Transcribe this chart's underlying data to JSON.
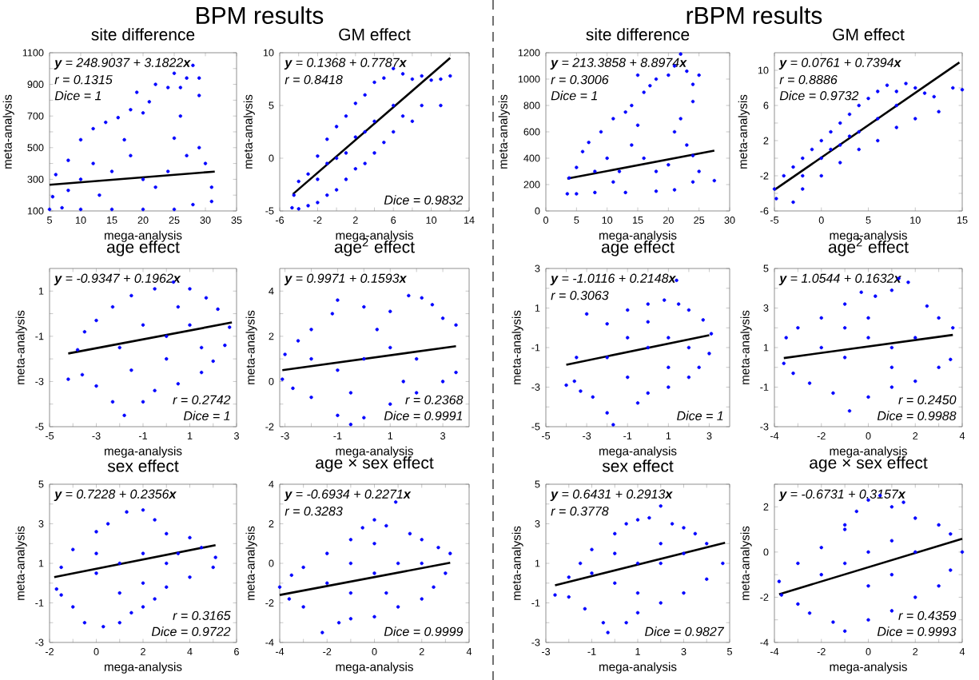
{
  "chart_data": [
    {
      "type": "other",
      "title": "BPM results"
    },
    {
      "type": "scatter",
      "title": "site difference",
      "xlabel": "mega-analysis",
      "ylabel": "meta-analysis",
      "marker": "circle",
      "xlim": [
        5,
        35
      ],
      "xticks": [
        5,
        10,
        15,
        20,
        25,
        30,
        35
      ],
      "ylim": [
        100,
        1100
      ],
      "yticks": [
        100,
        {
          "value": 200,
          "label": null
        },
        300,
        {
          "value": 400,
          "label": null
        },
        500,
        {
          "value": 600,
          "label": null
        },
        700,
        {
          "value": 800,
          "label": null
        },
        900,
        {
          "value": 1000,
          "label": null
        },
        1100
      ],
      "series": [
        {
          "type": "scatter",
          "color": "#0000ff",
          "x": [
            5,
            5.5,
            6,
            8,
            10,
            12,
            14,
            16,
            18,
            19,
            20,
            21,
            22,
            24,
            25,
            26,
            27,
            28,
            29,
            29,
            26,
            25,
            27,
            29,
            30,
            31,
            31,
            28,
            25,
            20,
            15,
            10,
            7,
            10,
            12,
            15,
            18,
            20,
            22,
            17,
            13,
            24,
            8
          ],
          "values": [
            110,
            190,
            330,
            420,
            550,
            620,
            660,
            690,
            740,
            850,
            720,
            790,
            900,
            880,
            970,
            880,
            940,
            1020,
            940,
            830,
            700,
            560,
            450,
            500,
            400,
            250,
            160,
            140,
            110,
            110,
            110,
            110,
            120,
            300,
            400,
            350,
            450,
            300,
            250,
            550,
            200,
            350,
            230
          ]
        },
        {
          "type": "line",
          "color": "#000000",
          "marker": "none",
          "x": [
            5,
            31.5
          ],
          "values": [
            265,
            349
          ]
        }
      ],
      "annotations": [
        "**y** = 248.9037 + 3.1822**x**",
        "r = 0.1315",
        "Dice = 1"
      ]
    },
    {
      "type": "scatter",
      "title": "GM effect",
      "xlabel": "mega-analysis",
      "ylabel": "meta-analysis",
      "marker": "circle",
      "xlim": [
        -6,
        14
      ],
      "xticks": [
        -6,
        {
          "value": -4,
          "label": null
        },
        -2,
        {
          "value": 0,
          "label": null
        },
        2,
        {
          "value": 4,
          "label": null
        },
        6,
        {
          "value": 8,
          "label": null
        },
        10,
        {
          "value": 12,
          "label": null
        },
        14
      ],
      "ylim": [
        -5,
        10
      ],
      "yticks": [
        -5,
        0,
        5,
        10
      ],
      "series": [
        {
          "type": "scatter",
          "color": "#0000ff",
          "x": [
            -4.7,
            -4.5,
            -4,
            -3,
            -2,
            -1,
            0,
            1,
            2,
            3,
            4,
            5,
            6,
            7,
            8,
            9,
            10,
            11,
            12,
            11,
            9,
            8,
            7,
            6,
            5,
            4,
            3,
            2,
            1,
            0,
            -1,
            -2,
            -3,
            -4,
            0,
            2,
            4,
            -2,
            6,
            1,
            3,
            -1
          ],
          "values": [
            -4.7,
            -3.5,
            -2.2,
            -1.5,
            0.2,
            1.8,
            3,
            4,
            5.2,
            6,
            7.2,
            7.6,
            8.5,
            8,
            7.5,
            7.8,
            7.4,
            7.5,
            7.8,
            5,
            5,
            3.5,
            4,
            2.5,
            1.5,
            0.5,
            -0.5,
            -1,
            -2,
            -3,
            -3.5,
            -4.2,
            -4.5,
            -4.8,
            0,
            2,
            3.5,
            -2,
            5,
            0.5,
            2.5,
            -0.5
          ]
        },
        {
          "type": "line",
          "color": "#000000",
          "marker": "none",
          "x": [
            -4.6,
            12
          ],
          "values": [
            -3.4,
            9.5
          ]
        }
      ],
      "annotations": [
        "**y** = 0.1368 + 0.7787**x**",
        "r = 0.8418",
        "Dice = 0.9832"
      ]
    },
    {
      "type": "scatter",
      "title": "age effect",
      "xlabel": "mega-analysis",
      "ylabel": "meta-analysis",
      "marker": "circle",
      "xlim": [
        -5,
        3
      ],
      "xticks": [
        -5,
        {
          "value": -4,
          "label": null
        },
        -3,
        {
          "value": -2,
          "label": null
        },
        -1,
        {
          "value": 0,
          "label": null
        },
        1,
        {
          "value": 2,
          "label": null
        },
        3
      ],
      "ylim": [
        -5,
        2
      ],
      "yticks": [
        -5,
        {
          "value": -4,
          "label": null
        },
        -3,
        {
          "value": -2,
          "label": null
        },
        -1,
        {
          "value": 0,
          "label": null
        },
        1
      ],
      "series": [
        {
          "type": "scatter",
          "color": "#0000ff",
          "x": [
            -4.2,
            -3.8,
            -3.5,
            -3,
            -2.3,
            -1.5,
            -0.5,
            0.3,
            1,
            1.7,
            2.2,
            2.7,
            2.5,
            2,
            1.5,
            0.5,
            -0.5,
            -1,
            -1.8,
            -2.3,
            -3,
            -3.6,
            -2,
            -1,
            0,
            1,
            0.5,
            -1.5,
            0,
            1.5
          ],
          "values": [
            -2.9,
            -1.6,
            -0.8,
            -0.3,
            0.3,
            0.8,
            1.1,
            1.4,
            1.1,
            0.7,
            0.2,
            -0.6,
            -1.4,
            -2.1,
            -2.6,
            -3.1,
            -3.4,
            -3.9,
            -4.5,
            -3.9,
            -3.2,
            -2.7,
            -1.5,
            -0.5,
            -1,
            -0.5,
            0.3,
            -2.5,
            -2,
            -1.5
          ]
        },
        {
          "type": "line",
          "color": "#000000",
          "marker": "none",
          "x": [
            -4.2,
            2.8
          ],
          "values": [
            -1.76,
            -0.39
          ]
        }
      ],
      "annotations": [
        "**y** = -0.9347 + 0.1962**x**",
        "r = 0.2742",
        "Dice = 1"
      ]
    },
    {
      "type": "scatter",
      "title": "age$^{2}$ effect",
      "xlabel": "mega-analysis",
      "ylabel": "meta-analysis",
      "marker": "circle",
      "xlim": [
        -3.2,
        4
      ],
      "xticks": [
        -3,
        {
          "value": -2,
          "label": null
        },
        -1,
        {
          "value": 0,
          "label": null
        },
        1,
        {
          "value": 2,
          "label": null
        },
        3
      ],
      "ylim": [
        -2,
        5
      ],
      "yticks": [
        -2,
        {
          "value": -1,
          "label": null
        },
        0,
        {
          "value": 1,
          "label": null
        },
        2,
        {
          "value": 3,
          "label": null
        },
        4
      ],
      "series": [
        {
          "type": "scatter",
          "color": "#0000ff",
          "x": [
            -3.1,
            -3,
            -2.5,
            -2,
            -1.2,
            -1,
            0,
            1,
            1.7,
            2.2,
            2.6,
            3,
            3.5,
            3.5,
            3,
            2,
            1,
            0,
            -0.5,
            -1,
            -2,
            -2.7,
            -1,
            0,
            1,
            2,
            -2,
            0.5,
            -0.5,
            1.5
          ],
          "values": [
            0.1,
            1.2,
            1.8,
            2.3,
            3,
            3.6,
            3.3,
            3.1,
            3.8,
            3.7,
            3.4,
            2.8,
            2.5,
            0.4,
            0,
            -0.5,
            -1,
            -1.6,
            -1.9,
            -1.5,
            -0.7,
            -0.3,
            0.5,
            1,
            1.5,
            1,
            1,
            2.3,
            -0.5,
            0
          ]
        },
        {
          "type": "line",
          "color": "#000000",
          "marker": "none",
          "x": [
            -3.1,
            3.5
          ],
          "values": [
            0.5,
            1.56
          ]
        }
      ],
      "annotations": [
        "**y** = 0.9971 + 0.1593**x**",
        "r = 0.2368",
        "Dice = 0.9991"
      ]
    },
    {
      "type": "scatter",
      "title": "sex effect",
      "xlabel": "mega-analysis",
      "ylabel": "meta-analysis",
      "marker": "circle",
      "xlim": [
        -2,
        6
      ],
      "xticks": [
        -2,
        {
          "value": -1,
          "label": null
        },
        0,
        {
          "value": 1,
          "label": null
        },
        2,
        {
          "value": 3,
          "label": null
        },
        4,
        {
          "value": 5,
          "label": null
        },
        6
      ],
      "ylim": [
        -3,
        5
      ],
      "yticks": [
        -3,
        {
          "value": -2,
          "label": null
        },
        -1,
        {
          "value": 0,
          "label": null
        },
        1,
        {
          "value": 2,
          "label": null
        },
        3,
        {
          "value": 4,
          "label": null
        },
        5
      ],
      "series": [
        {
          "type": "scatter",
          "color": "#0000ff",
          "x": [
            -1.7,
            -1.5,
            -1,
            0,
            0.5,
            1.3,
            2,
            2.5,
            3,
            4,
            4.5,
            5.1,
            5,
            4,
            3,
            2.5,
            2,
            1.5,
            1,
            0.3,
            -0.5,
            -1,
            -1.5,
            0,
            1,
            2,
            3,
            1,
            0,
            2,
            3.5
          ],
          "values": [
            -0.3,
            0.8,
            1.7,
            2.6,
            3,
            3.6,
            3.7,
            3.2,
            2.5,
            2.3,
            1.8,
            1.3,
            0.8,
            0.3,
            -0.2,
            -0.8,
            -1.2,
            -1.5,
            -2,
            -2.2,
            -2,
            -1.2,
            -0.6,
            0.5,
            1,
            1.5,
            1,
            -0.5,
            1.5,
            0,
            1.5
          ]
        },
        {
          "type": "line",
          "color": "#000000",
          "marker": "none",
          "x": [
            -1.8,
            5.1
          ],
          "values": [
            0.3,
            1.92
          ]
        }
      ],
      "annotations": [
        "**y** = 0.7228 + 0.2356**x**",
        "r = 0.3165",
        "Dice = 0.9722"
      ]
    },
    {
      "type": "scatter",
      "title": "age × sex effect",
      "xlabel": "mega-analysis",
      "ylabel": "meta-analysis",
      "marker": "circle",
      "xlim": [
        -4,
        4
      ],
      "xticks": [
        -4,
        {
          "value": -3,
          "label": null
        },
        -2,
        {
          "value": -1,
          "label": null
        },
        0,
        {
          "value": 1,
          "label": null
        },
        2,
        {
          "value": 3,
          "label": null
        },
        4
      ],
      "ylim": [
        -4,
        4
      ],
      "yticks": [
        -4,
        {
          "value": -3,
          "label": null
        },
        -2,
        {
          "value": -1,
          "label": null
        },
        0,
        {
          "value": 1,
          "label": null
        },
        2,
        {
          "value": 3,
          "label": null
        },
        4
      ],
      "series": [
        {
          "type": "scatter",
          "color": "#0000ff",
          "x": [
            -4,
            -3.5,
            -3,
            -2,
            -1,
            -0.5,
            0,
            0.5,
            0.9,
            1.5,
            2,
            2.7,
            3.2,
            3,
            2.5,
            2,
            1,
            0,
            -1,
            -1.5,
            -2.2,
            -3,
            -3.6,
            -2,
            -1,
            0,
            1,
            2,
            -1,
            0.5,
            0
          ],
          "values": [
            -1.2,
            -0.6,
            -0.2,
            0.5,
            1.2,
            1.8,
            2.2,
            1.9,
            3.1,
            1.5,
            1.2,
            0.8,
            0.5,
            -0.5,
            -1.2,
            -1.8,
            -2.2,
            -2.7,
            -2.8,
            -3,
            -3.5,
            -2.2,
            -1.8,
            -1,
            0,
            -0.5,
            0,
            0,
            -1.5,
            -1.5,
            1
          ]
        },
        {
          "type": "line",
          "color": "#000000",
          "marker": "none",
          "x": [
            -4,
            3.2
          ],
          "values": [
            -1.6,
            0.03
          ]
        }
      ],
      "annotations": [
        "**y** = -0.6934 + 0.2271**x**",
        "r = 0.3283",
        "Dice = 0.9999"
      ]
    },
    {
      "type": "other",
      "title": "rBPM results"
    },
    {
      "type": "scatter",
      "title": "site difference",
      "xlabel": "mega-analysis",
      "ylabel": "meta-analysis",
      "marker": "circle",
      "xlim": [
        0,
        30
      ],
      "xticks": [
        0,
        5,
        10,
        15,
        20,
        25,
        30
      ],
      "ylim": [
        0,
        1200
      ],
      "yticks": [
        0,
        200,
        400,
        600,
        800,
        1000,
        1200
      ],
      "series": [
        {
          "type": "scatter",
          "color": "#0000ff",
          "x": [
            3.5,
            3.8,
            5,
            6,
            7,
            9,
            11,
            13,
            14,
            15,
            16,
            17,
            18,
            20,
            21,
            22,
            23,
            24,
            25,
            24,
            22,
            21,
            23,
            24,
            25,
            27.5,
            24,
            21,
            18,
            13,
            8,
            5,
            8,
            10,
            12,
            14,
            16,
            18,
            20,
            15,
            11
          ],
          "values": [
            130,
            250,
            330,
            450,
            520,
            600,
            700,
            750,
            800,
            1030,
            900,
            950,
            1000,
            1030,
            1100,
            1190,
            1060,
            960,
            1030,
            830,
            700,
            600,
            500,
            420,
            300,
            230,
            220,
            160,
            150,
            140,
            140,
            130,
            300,
            400,
            300,
            500,
            400,
            300,
            350,
            650,
            220
          ]
        },
        {
          "type": "line",
          "color": "#000000",
          "marker": "none",
          "x": [
            3.5,
            27.5
          ],
          "values": [
            245,
            458
          ]
        }
      ],
      "annotations": [
        "**y** = 213.3858 + 8.8974**x**",
        "r = 0.3006",
        "Dice = 1"
      ]
    },
    {
      "type": "scatter",
      "title": "GM effect",
      "xlabel": "mega-analysis",
      "ylabel": "meta-analysis",
      "marker": "circle",
      "xlim": [
        -5,
        15
      ],
      "xticks": [
        -5,
        0,
        5,
        10,
        15
      ],
      "ylim": [
        -6,
        12
      ],
      "yticks": [
        -6,
        {
          "value": -4,
          "label": null
        },
        -2,
        {
          "value": 0,
          "label": null
        },
        2,
        {
          "value": 4,
          "label": null
        },
        6,
        {
          "value": 8,
          "label": null
        },
        10
      ],
      "series": [
        {
          "type": "scatter",
          "color": "#0000ff",
          "x": [
            -4.8,
            -5,
            -4,
            -3,
            -2,
            -1,
            0,
            1,
            2,
            3,
            4,
            5,
            6,
            7,
            8,
            9,
            10,
            11,
            12,
            14,
            15,
            12.5,
            10,
            8,
            6,
            4,
            2,
            0,
            -2,
            -3,
            0,
            2,
            4,
            6,
            -2,
            8,
            1,
            3
          ],
          "values": [
            -4.6,
            -3.5,
            -2,
            -1,
            0,
            1,
            2,
            3,
            4,
            5,
            6,
            6.8,
            7.6,
            8.3,
            7.6,
            8.5,
            8,
            7.4,
            7,
            8,
            7.8,
            5.3,
            4.5,
            3.5,
            2,
            1,
            -0.5,
            -2,
            -3.5,
            -5,
            0,
            1.5,
            3,
            4.5,
            -2,
            6,
            1,
            2.5
          ]
        },
        {
          "type": "line",
          "color": "#000000",
          "marker": "none",
          "x": [
            -5,
            14.7
          ],
          "values": [
            -3.6,
            10.9
          ]
        }
      ],
      "annotations": [
        "**y** = 0.0761 + 0.7394**x**",
        "r = 0.8886",
        "Dice = 0.9732"
      ]
    },
    {
      "type": "scatter",
      "title": "age effect",
      "xlabel": "mega-analysis",
      "ylabel": "meta-analysis",
      "marker": "circle",
      "xlim": [
        -5,
        4
      ],
      "xticks": [
        -5,
        {
          "value": -4,
          "label": null
        },
        -3,
        {
          "value": -2,
          "label": null
        },
        -1,
        {
          "value": 0,
          "label": null
        },
        1,
        {
          "value": 2,
          "label": null
        },
        3
      ],
      "ylim": [
        -5,
        3
      ],
      "yticks": [
        -5,
        {
          "value": -4,
          "label": null
        },
        -3,
        {
          "value": -2,
          "label": null
        },
        -1,
        {
          "value": 0,
          "label": null
        },
        1,
        {
          "value": 2,
          "label": null
        },
        3
      ],
      "series": [
        {
          "type": "scatter",
          "color": "#0000ff",
          "x": [
            -4,
            -3.5,
            -3,
            -2,
            -1,
            0,
            0.8,
            1.5,
            2,
            2.7,
            3.1,
            3,
            2.5,
            2,
            1,
            0,
            -0.5,
            -1.7,
            -2,
            -2.7,
            -3.3,
            -3.6,
            -2,
            -1,
            0,
            1,
            0,
            -1,
            1,
            2,
            1.4
          ],
          "values": [
            -2.9,
            -1.5,
            0.7,
            0.2,
            0.9,
            1.2,
            1.4,
            1.2,
            0.9,
            0.4,
            -0.3,
            -1.3,
            -2,
            -2.5,
            -3,
            -3.3,
            -3.8,
            -4.9,
            -4.3,
            -3.5,
            -3.2,
            -2.7,
            -1.5,
            -0.5,
            -1,
            -0.5,
            0.3,
            -2.5,
            -2,
            -1,
            2.4
          ]
        },
        {
          "type": "line",
          "color": "#000000",
          "marker": "none",
          "x": [
            -4,
            3
          ],
          "values": [
            -1.87,
            -0.37
          ]
        }
      ],
      "annotations": [
        "**y** = -1.0116 + 0.2148**x**",
        "r = 0.3063",
        "Dice = 1"
      ]
    },
    {
      "type": "scatter",
      "title": "age$^{2}$ effect",
      "xlabel": "mega-analysis",
      "ylabel": "meta-analysis",
      "marker": "circle",
      "xlim": [
        -4,
        4
      ],
      "xticks": [
        -4,
        {
          "value": -3,
          "label": null
        },
        -2,
        {
          "value": -1,
          "label": null
        },
        0,
        {
          "value": 1,
          "label": null
        },
        2,
        {
          "value": 3,
          "label": null
        },
        4
      ],
      "ylim": [
        -3,
        5
      ],
      "yticks": [
        -3,
        {
          "value": -2,
          "label": null
        },
        -1,
        {
          "value": 0,
          "label": null
        },
        1,
        {
          "value": 2,
          "label": null
        },
        3,
        {
          "value": 4,
          "label": null
        },
        5
      ],
      "series": [
        {
          "type": "scatter",
          "color": "#0000ff",
          "x": [
            -3.6,
            -3.5,
            -3,
            -2,
            -1,
            -0.3,
            0.3,
            1,
            1.3,
            1.7,
            2.5,
            3,
            3.6,
            3.5,
            3,
            2,
            1,
            0,
            -0.8,
            -1.5,
            -2.5,
            -3.2,
            -2,
            -1,
            0,
            1,
            2,
            0,
            1,
            -1
          ],
          "values": [
            0.2,
            1.5,
            2,
            2.5,
            3.2,
            3.8,
            3.6,
            3.9,
            4.5,
            4.3,
            3.1,
            2.5,
            2,
            0.4,
            0,
            -0.7,
            -1,
            -1.5,
            -2.2,
            -1.3,
            -0.8,
            -0.3,
            1,
            0.5,
            1.5,
            1,
            1.5,
            2.5,
            0,
            2
          ]
        },
        {
          "type": "line",
          "color": "#000000",
          "marker": "none",
          "x": [
            -3.6,
            3.6
          ],
          "values": [
            0.47,
            1.64
          ]
        }
      ],
      "annotations": [
        "**y** = 1.0544 + 0.1632**x**",
        "r = 0.2450",
        "Dice = 0.9988"
      ]
    },
    {
      "type": "scatter",
      "title": "sex effect",
      "xlabel": "mega-analysis",
      "ylabel": "meta-analysis",
      "marker": "circle",
      "xlim": [
        -3,
        5
      ],
      "xticks": [
        -3,
        {
          "value": -2,
          "label": null
        },
        -1,
        {
          "value": 0,
          "label": null
        },
        1,
        {
          "value": 2,
          "label": null
        },
        3,
        {
          "value": 4,
          "label": null
        },
        5
      ],
      "ylim": [
        -3,
        5
      ],
      "yticks": [
        -3,
        {
          "value": -2,
          "label": null
        },
        -1,
        {
          "value": 0,
          "label": null
        },
        1,
        {
          "value": 2,
          "label": null
        },
        3,
        {
          "value": 4,
          "label": null
        },
        5
      ],
      "series": [
        {
          "type": "scatter",
          "color": "#0000ff",
          "x": [
            -2.6,
            -2,
            -1.5,
            -1,
            0,
            0.5,
            1,
            1.5,
            2,
            2.5,
            3,
            3.5,
            4,
            4.7,
            4,
            3,
            2,
            1,
            0.5,
            -0.3,
            -0.5,
            -1.3,
            -2,
            0,
            1,
            2,
            -1,
            1,
            3,
            0,
            2
          ],
          "values": [
            -0.6,
            0.3,
            1,
            1.7,
            2.5,
            3,
            3.2,
            3.3,
            3.9,
            3,
            2.8,
            2.5,
            2,
            1,
            0.2,
            -0.5,
            -1,
            -1.5,
            -2,
            -2.5,
            -2,
            -1.3,
            -0.7,
            0,
            1,
            1,
            0.5,
            -0.5,
            1.5,
            1.5,
            2
          ]
        },
        {
          "type": "line",
          "color": "#000000",
          "marker": "none",
          "x": [
            -2.6,
            4.8
          ],
          "values": [
            -0.11,
            2.04
          ]
        }
      ],
      "annotations": [
        "**y** = 0.6431 + 0.2913**x**",
        "r = 0.3778",
        "Dice = 0.9827"
      ]
    },
    {
      "type": "scatter",
      "title": "age × sex effect",
      "xlabel": "mega-analysis",
      "ylabel": "meta-analysis",
      "marker": "circle",
      "xlim": [
        -4,
        4
      ],
      "xticks": [
        -4,
        {
          "value": -3,
          "label": null
        },
        -2,
        {
          "value": -1,
          "label": null
        },
        0,
        {
          "value": 1,
          "label": null
        },
        2,
        {
          "value": 3,
          "label": null
        },
        4
      ],
      "ylim": [
        -4,
        3
      ],
      "yticks": [
        -4,
        {
          "value": -3,
          "label": null
        },
        -2,
        {
          "value": -1,
          "label": null
        },
        0,
        {
          "value": 1,
          "label": null
        },
        2,
        {
          "value": 3,
          "label": null
        }
      ],
      "series": [
        {
          "type": "scatter",
          "color": "#0000ff",
          "x": [
            -3.8,
            -3,
            -2,
            -1,
            -0.5,
            0,
            0.5,
            1,
            1.5,
            2,
            3,
            3.5,
            4,
            3.5,
            3,
            2,
            1,
            0,
            -1,
            -1.5,
            -2.5,
            -3,
            -3.7,
            -2,
            -1,
            0,
            1,
            2,
            0,
            -1,
            1
          ],
          "values": [
            -1.3,
            -0.5,
            0.2,
            1.2,
            1.8,
            2.3,
            2.5,
            2,
            2.2,
            1.5,
            1.2,
            0.8,
            0,
            -0.8,
            -1.5,
            -2,
            -2.6,
            -3,
            -3.5,
            -3.1,
            -2.7,
            -2.3,
            -1.9,
            -1,
            -0.5,
            0,
            0.5,
            0,
            -1.5,
            1,
            -1
          ]
        },
        {
          "type": "line",
          "color": "#000000",
          "marker": "none",
          "x": [
            -3.8,
            4
          ],
          "values": [
            -1.87,
            0.59
          ]
        }
      ],
      "annotations": [
        "**y** = -0.6731 + 0.3157**x**",
        "r = 0.4359",
        "Dice = 0.9993"
      ]
    }
  ]
}
